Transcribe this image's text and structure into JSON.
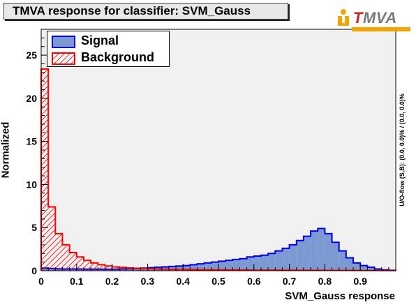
{
  "title": "TMVA response for classifier: SVM_Gauss",
  "logo": {
    "text_t": "T",
    "text_rest": "MVA",
    "icon": "tmva-person-icon"
  },
  "side_note": "U/O-flow (S,B): (0.0, 0.0)% / (0.0, 0.0)%",
  "colors": {
    "signal_fill": "#7d99d1",
    "signal_line": "#0000ee",
    "background_line": "#ff0000",
    "frame_bg": "#f0f0f0"
  },
  "chart_data": {
    "type": "bar",
    "title": "TMVA response for classifier: SVM_Gauss",
    "xlabel": "SVM_Gauss response",
    "ylabel": "Normalized",
    "xlim": [
      0,
      1.0
    ],
    "ylim": [
      0,
      28
    ],
    "bin_width": 0.02,
    "x_ticks": [
      0,
      0.1,
      0.2,
      0.3,
      0.4,
      0.5,
      0.6,
      0.7,
      0.8,
      0.9
    ],
    "x_tick_labels": [
      "0",
      "0.1",
      "0.2",
      "0.3",
      "0.4",
      "0.5",
      "0.6",
      "0.7",
      "0.8",
      "0.9"
    ],
    "y_ticks": [
      0,
      5,
      10,
      15,
      20,
      25
    ],
    "y_tick_labels": [
      "0",
      "5",
      "10",
      "15",
      "20",
      "25"
    ],
    "legend": {
      "placement": "top-left",
      "entries": [
        "Signal",
        "Background"
      ]
    },
    "series": [
      {
        "name": "Signal",
        "style": "filled",
        "values": [
          0.3,
          0.25,
          0.22,
          0.2,
          0.2,
          0.2,
          0.18,
          0.18,
          0.18,
          0.17,
          0.18,
          0.2,
          0.22,
          0.25,
          0.3,
          0.35,
          0.4,
          0.45,
          0.5,
          0.55,
          0.6,
          0.7,
          0.8,
          0.9,
          1.0,
          1.1,
          1.2,
          1.3,
          1.4,
          1.6,
          1.7,
          1.8,
          2.0,
          2.3,
          2.6,
          3.0,
          3.5,
          4.0,
          4.6,
          4.9,
          4.3,
          3.3,
          2.3,
          1.5,
          0.9,
          0.6,
          0.4,
          0.2,
          0.1,
          0.05
        ]
      },
      {
        "name": "Background",
        "style": "hatched",
        "values": [
          23.4,
          7.4,
          4.3,
          3.0,
          2.1,
          1.6,
          1.2,
          0.9,
          0.7,
          0.55,
          0.45,
          0.38,
          0.32,
          0.28,
          0.25,
          0.22,
          0.2,
          0.18,
          0.16,
          0.15,
          0.14,
          0.13,
          0.12,
          0.11,
          0.1,
          0.1,
          0.09,
          0.09,
          0.08,
          0.08,
          0.07,
          0.07,
          0.07,
          0.06,
          0.06,
          0.06,
          0.05,
          0.05,
          0.05,
          0.05,
          0.04,
          0.04,
          0.04,
          0.04,
          0.03,
          0.03,
          0.03,
          0.03,
          0.02,
          0.02
        ]
      }
    ]
  }
}
